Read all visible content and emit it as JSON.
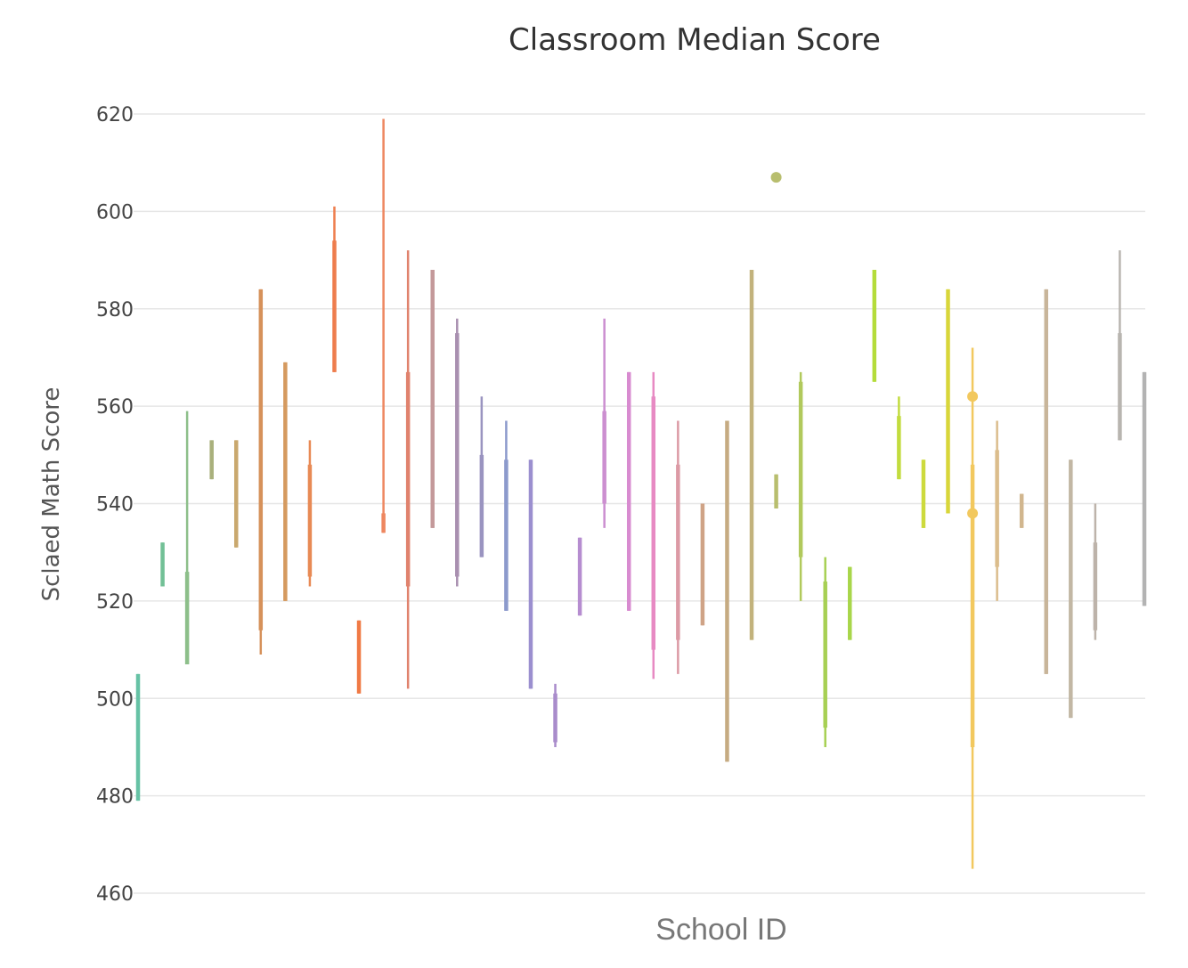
{
  "chart_data": {
    "type": "box",
    "title": "Classroom Median Score",
    "xlabel": "School ID",
    "ylabel": "Sclaed Math Score",
    "ylim": [
      460,
      620
    ],
    "yticks": [
      460,
      480,
      500,
      520,
      540,
      560,
      580,
      600,
      620
    ],
    "grid": true,
    "x_tick_labels_visible": false,
    "series": [
      {
        "color": "#66c2a5",
        "whisker": [
          479,
          505
        ],
        "box": [
          479,
          505
        ]
      },
      {
        "color": "#72c096",
        "whisker": [
          523,
          532
        ],
        "box": [
          523,
          532
        ]
      },
      {
        "color": "#8dbf8a",
        "whisker": [
          507,
          559
        ],
        "box": [
          507,
          526
        ]
      },
      {
        "color": "#a9b07c",
        "whisker": [
          545,
          553
        ],
        "box": [
          545,
          553
        ]
      },
      {
        "color": "#c9a86e",
        "whisker": [
          531,
          553
        ],
        "box": [
          531,
          553
        ]
      },
      {
        "color": "#d6915a",
        "whisker": [
          509,
          584
        ],
        "box": [
          514,
          584
        ]
      },
      {
        "color": "#d59a5f",
        "whisker": [
          520,
          569
        ],
        "box": [
          520,
          569
        ]
      },
      {
        "color": "#e88a55",
        "whisker": [
          523,
          553
        ],
        "box": [
          525,
          548
        ]
      },
      {
        "color": "#ee7d4d",
        "whisker": [
          567,
          601
        ],
        "box": [
          567,
          594
        ]
      },
      {
        "color": "#f07a45",
        "whisker": [
          501,
          516
        ],
        "box": [
          501,
          516
        ]
      },
      {
        "color": "#ee8760",
        "whisker": [
          534,
          619
        ],
        "box": [
          534,
          538
        ]
      },
      {
        "color": "#e0826d",
        "whisker": [
          502,
          592
        ],
        "box": [
          523,
          567
        ]
      },
      {
        "color": "#c4999a",
        "whisker": [
          535,
          588
        ],
        "box": [
          535,
          588
        ]
      },
      {
        "color": "#a990b0",
        "whisker": [
          523,
          578
        ],
        "box": [
          525,
          575
        ]
      },
      {
        "color": "#9a94c0",
        "whisker": [
          529,
          562
        ],
        "box": [
          529,
          550
        ]
      },
      {
        "color": "#8c9acc",
        "whisker": [
          518,
          557
        ],
        "box": [
          518,
          549
        ]
      },
      {
        "color": "#9b8fcf",
        "whisker": [
          502,
          549
        ],
        "box": [
          502,
          549
        ]
      },
      {
        "color": "#a98ccb",
        "whisker": [
          490,
          503
        ],
        "box": [
          491,
          501
        ]
      },
      {
        "color": "#b68dd0",
        "whisker": [
          517,
          533
        ],
        "box": [
          517,
          533
        ]
      },
      {
        "color": "#cc8fd0",
        "whisker": [
          535,
          578
        ],
        "box": [
          540,
          559
        ]
      },
      {
        "color": "#d88bd0",
        "whisker": [
          518,
          567
        ],
        "box": [
          518,
          567
        ]
      },
      {
        "color": "#e78ac3",
        "whisker": [
          504,
          567
        ],
        "box": [
          510,
          562
        ]
      },
      {
        "color": "#dc9aa5",
        "whisker": [
          505,
          557
        ],
        "box": [
          512,
          548
        ]
      },
      {
        "color": "#cfa386",
        "whisker": [
          515,
          540
        ],
        "box": [
          515,
          540
        ]
      },
      {
        "color": "#c6ab82",
        "whisker": [
          487,
          557
        ],
        "box": [
          487,
          557
        ]
      },
      {
        "color": "#c2b27c",
        "whisker": [
          512,
          588
        ],
        "box": [
          512,
          588
        ]
      },
      {
        "color": "#b8be6e",
        "whisker": [
          539,
          546
        ],
        "box": [
          539,
          546
        ],
        "outliers": [
          607
        ]
      },
      {
        "color": "#b1c95c",
        "whisker": [
          520,
          567
        ],
        "box": [
          529,
          565
        ]
      },
      {
        "color": "#a7d054",
        "whisker": [
          490,
          529
        ],
        "box": [
          494,
          524
        ]
      },
      {
        "color": "#a8d64a",
        "whisker": [
          512,
          527
        ],
        "box": [
          512,
          527
        ]
      },
      {
        "color": "#b4dc3a",
        "whisker": [
          565,
          588
        ],
        "box": [
          565,
          588
        ]
      },
      {
        "color": "#c2dc3e",
        "whisker": [
          545,
          562
        ],
        "box": [
          545,
          558
        ]
      },
      {
        "color": "#cdda3d",
        "whisker": [
          535,
          549
        ],
        "box": [
          535,
          549
        ]
      },
      {
        "color": "#d8d63a",
        "whisker": [
          538,
          584
        ],
        "box": [
          538,
          584
        ]
      },
      {
        "color": "#f2c85e",
        "whisker": [
          465,
          572
        ],
        "box": [
          490,
          548
        ],
        "outliers": [
          562,
          538
        ]
      },
      {
        "color": "#dbbd8c",
        "whisker": [
          520,
          557
        ],
        "box": [
          527,
          551
        ]
      },
      {
        "color": "#d1b68e",
        "whisker": [
          535,
          542
        ],
        "box": [
          535,
          542
        ]
      },
      {
        "color": "#c8b59a",
        "whisker": [
          505,
          584
        ],
        "box": [
          505,
          584
        ]
      },
      {
        "color": "#c2b7a4",
        "whisker": [
          496,
          549
        ],
        "box": [
          496,
          549
        ]
      },
      {
        "color": "#bdb3aa",
        "whisker": [
          512,
          540
        ],
        "box": [
          514,
          532
        ]
      },
      {
        "color": "#b8b5b0",
        "whisker": [
          553,
          592
        ],
        "box": [
          553,
          575
        ]
      },
      {
        "color": "#b3b3b3",
        "whisker": [
          519,
          567
        ],
        "box": [
          519,
          567
        ]
      }
    ]
  }
}
